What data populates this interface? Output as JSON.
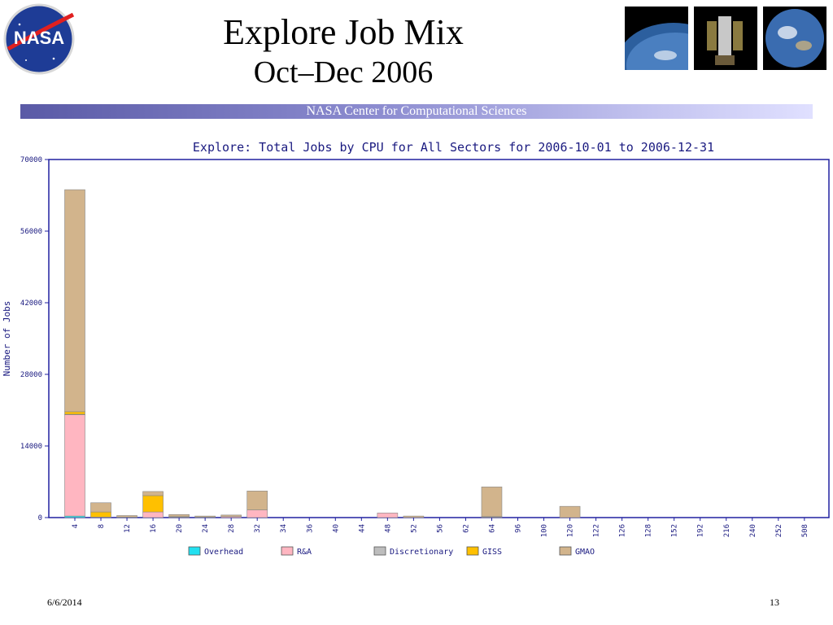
{
  "slide": {
    "title": "Explore Job Mix",
    "subtitle": "Oct–Dec 2006",
    "banner": "NASA Center for Computational Sciences",
    "footer_date": "6/6/2014",
    "page_number": "13",
    "logo_text": "NASA",
    "photos": [
      "earth-horizon-photo",
      "hubble-telescope-photo",
      "earth-globe-photo"
    ]
  },
  "chart_data": {
    "type": "bar",
    "stacked": true,
    "title": "Explore: Total Jobs by CPU for All Sectors for 2006-10-01 to 2006-12-31",
    "xlabel": "",
    "ylabel": "Number of Jobs",
    "ylim": [
      0,
      70000
    ],
    "yticks": [
      0,
      14000,
      28000,
      42000,
      56000,
      70000
    ],
    "categories": [
      "4",
      "8",
      "12",
      "16",
      "20",
      "24",
      "28",
      "32",
      "34",
      "36",
      "40",
      "44",
      "48",
      "52",
      "56",
      "62",
      "64",
      "96",
      "100",
      "120",
      "122",
      "126",
      "128",
      "152",
      "192",
      "216",
      "240",
      "252",
      "508"
    ],
    "series": [
      {
        "name": "Overhead",
        "color": "#22e0f0",
        "values": [
          300,
          0,
          0,
          0,
          0,
          0,
          0,
          0,
          0,
          0,
          0,
          0,
          0,
          0,
          0,
          0,
          0,
          0,
          0,
          0,
          0,
          0,
          0,
          0,
          0,
          0,
          0,
          0,
          0
        ]
      },
      {
        "name": "R&A",
        "color": "#ffb6c1",
        "values": [
          19800,
          100,
          0,
          1100,
          100,
          0,
          200,
          1500,
          0,
          0,
          0,
          0,
          900,
          0,
          0,
          0,
          100,
          0,
          0,
          0,
          0,
          0,
          0,
          0,
          0,
          0,
          0,
          0,
          0
        ]
      },
      {
        "name": "Discretionary",
        "color": "#bdbdbd",
        "values": [
          100,
          0,
          0,
          0,
          100,
          100,
          0,
          0,
          0,
          0,
          0,
          0,
          0,
          0,
          0,
          0,
          100,
          0,
          0,
          0,
          0,
          0,
          0,
          0,
          0,
          0,
          0,
          0,
          0
        ]
      },
      {
        "name": "GISS",
        "color": "#ffc000",
        "values": [
          500,
          1000,
          100,
          3200,
          0,
          0,
          0,
          0,
          0,
          0,
          0,
          0,
          0,
          0,
          0,
          0,
          0,
          0,
          0,
          0,
          0,
          0,
          0,
          0,
          0,
          0,
          0,
          0,
          0
        ]
      },
      {
        "name": "GMAO",
        "color": "#d2b48c",
        "values": [
          43400,
          1800,
          300,
          800,
          400,
          200,
          300,
          3700,
          0,
          0,
          0,
          0,
          0,
          300,
          0,
          0,
          5800,
          0,
          0,
          2200,
          0,
          0,
          0,
          0,
          0,
          0,
          0,
          0,
          0
        ]
      }
    ],
    "legend_position": "bottom",
    "grid": false
  }
}
